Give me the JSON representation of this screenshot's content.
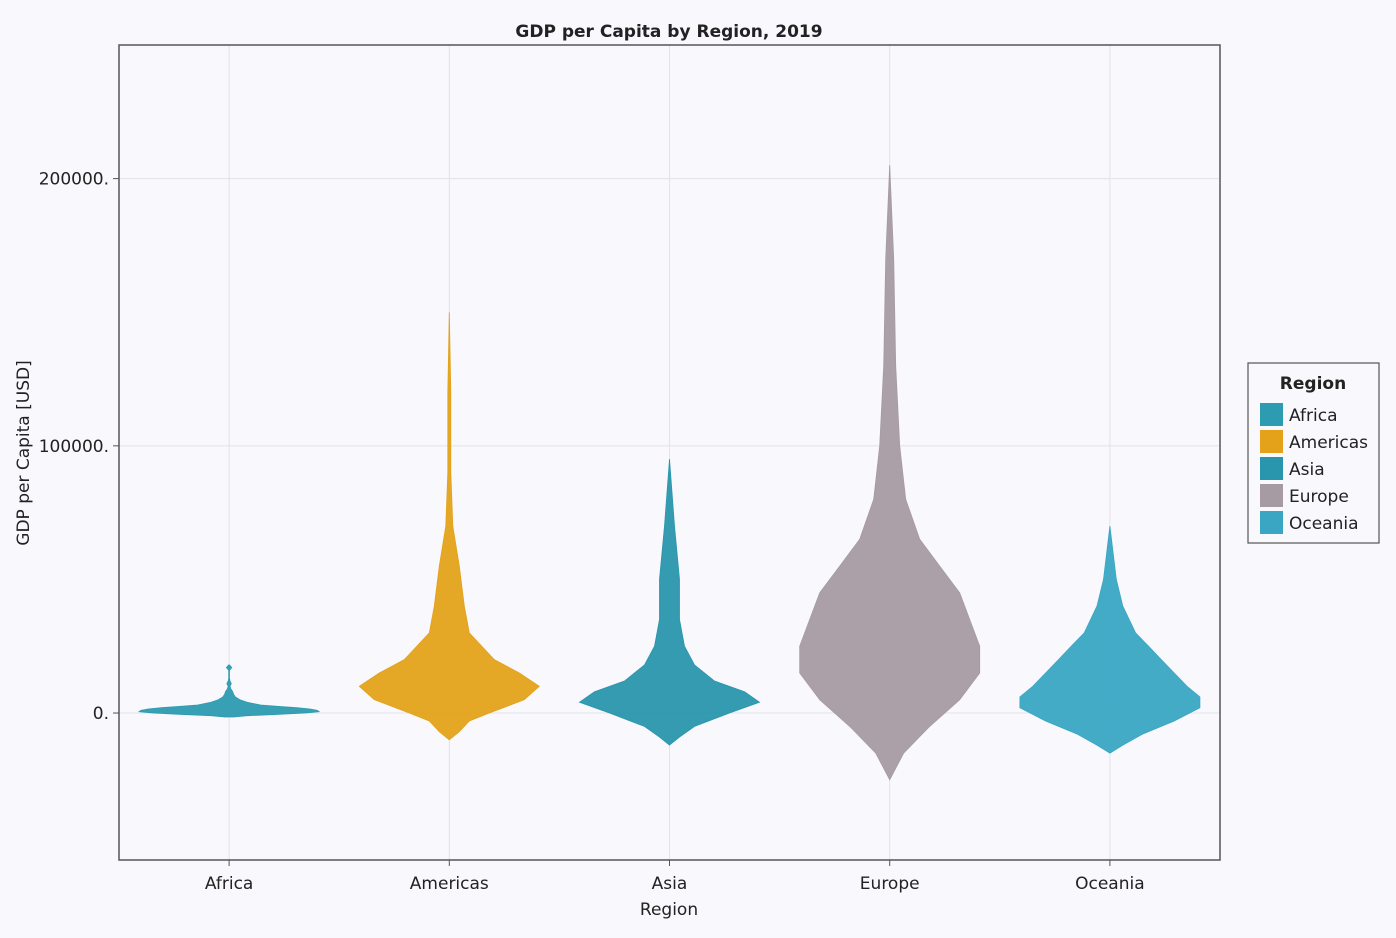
{
  "chart_data": {
    "type": "violin",
    "title": "GDP per Capita by Region, 2019",
    "xlabel": "Region",
    "ylabel": "GDP per Capita [USD]",
    "ylim": [
      -55000,
      250000
    ],
    "yticks": [
      0,
      100000,
      200000
    ],
    "ytick_labels": [
      "0.",
      "100000.",
      "200000."
    ],
    "grid": true,
    "legend_title": "Region",
    "legend_position": "right",
    "categories": [
      "Africa",
      "Americas",
      "Asia",
      "Europe",
      "Oceania"
    ],
    "series": [
      {
        "name": "Africa",
        "color": "#2d9bb0",
        "min": -1500,
        "max": 18000,
        "density": [
          [
            -1500,
            0.05
          ],
          [
            -1000,
            0.2
          ],
          [
            -500,
            0.55
          ],
          [
            0,
            0.85
          ],
          [
            500,
            1.0
          ],
          [
            1000,
            0.98
          ],
          [
            1500,
            0.9
          ],
          [
            2000,
            0.75
          ],
          [
            2500,
            0.55
          ],
          [
            3000,
            0.35
          ],
          [
            4000,
            0.2
          ],
          [
            5000,
            0.12
          ],
          [
            6000,
            0.07
          ],
          [
            7000,
            0.05
          ],
          [
            8000,
            0.04
          ],
          [
            9000,
            0.02
          ],
          [
            10000,
            0.01
          ],
          [
            11000,
            0.025
          ],
          [
            12000,
            0.01
          ],
          [
            13000,
            0.004
          ],
          [
            16000,
            0.004
          ],
          [
            17000,
            0.03
          ],
          [
            18000,
            0.004
          ]
        ]
      },
      {
        "name": "Americas",
        "color": "#e3a21a",
        "min": -10000,
        "max": 150000,
        "density": [
          [
            -10000,
            0.0
          ],
          [
            -7000,
            0.02
          ],
          [
            -3000,
            0.04
          ],
          [
            0,
            0.08
          ],
          [
            5000,
            0.15
          ],
          [
            10000,
            0.18
          ],
          [
            15000,
            0.14
          ],
          [
            20000,
            0.09
          ],
          [
            30000,
            0.04
          ],
          [
            40000,
            0.03
          ],
          [
            55000,
            0.02
          ],
          [
            70000,
            0.007
          ],
          [
            90000,
            0.003
          ],
          [
            120000,
            0.003
          ],
          [
            150000,
            0.0
          ]
        ]
      },
      {
        "name": "Asia",
        "color": "#2a96ad",
        "min": -12000,
        "max": 95000,
        "density": [
          [
            -12000,
            0.0
          ],
          [
            -9000,
            0.02
          ],
          [
            -5000,
            0.05
          ],
          [
            0,
            0.12
          ],
          [
            4000,
            0.18
          ],
          [
            8000,
            0.15
          ],
          [
            12000,
            0.09
          ],
          [
            18000,
            0.05
          ],
          [
            25000,
            0.03
          ],
          [
            35000,
            0.02
          ],
          [
            50000,
            0.02
          ],
          [
            60000,
            0.015
          ],
          [
            70000,
            0.01
          ],
          [
            80000,
            0.006
          ],
          [
            95000,
            0.0
          ]
        ]
      },
      {
        "name": "Europe",
        "color": "#a69ba3",
        "min": -25000,
        "max": 205000,
        "density": [
          [
            -25000,
            0.0
          ],
          [
            -15000,
            0.007
          ],
          [
            -5000,
            0.02
          ],
          [
            5000,
            0.035
          ],
          [
            15000,
            0.045
          ],
          [
            25000,
            0.045
          ],
          [
            35000,
            0.04
          ],
          [
            45000,
            0.035
          ],
          [
            55000,
            0.025
          ],
          [
            65000,
            0.015
          ],
          [
            80000,
            0.008
          ],
          [
            100000,
            0.005
          ],
          [
            130000,
            0.003
          ],
          [
            170000,
            0.002
          ],
          [
            205000,
            0.0
          ]
        ]
      },
      {
        "name": "Oceania",
        "color": "#3aa6c4",
        "min": -15000,
        "max": 70000,
        "density": [
          [
            -15000,
            0.0
          ],
          [
            -12000,
            0.02
          ],
          [
            -8000,
            0.05
          ],
          [
            -3000,
            0.1
          ],
          [
            2000,
            0.14
          ],
          [
            6000,
            0.14
          ],
          [
            10000,
            0.12
          ],
          [
            15000,
            0.1
          ],
          [
            20000,
            0.08
          ],
          [
            25000,
            0.06
          ],
          [
            30000,
            0.04
          ],
          [
            40000,
            0.02
          ],
          [
            50000,
            0.01
          ],
          [
            60000,
            0.005
          ],
          [
            70000,
            0.0
          ]
        ]
      }
    ]
  }
}
